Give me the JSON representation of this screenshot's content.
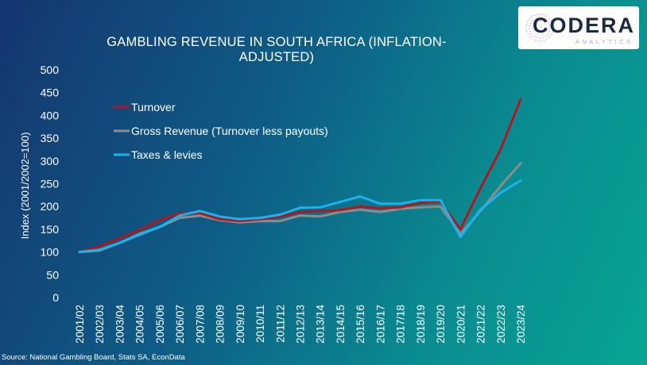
{
  "logo": {
    "name": "CODERA",
    "sub": "ANALYTICS"
  },
  "source": "Source:  National Gambling Board, Stats SA, EconData",
  "colors": {
    "turnover": "#b0171f",
    "gross": "#8c8c8c",
    "taxes": "#1cb2ee"
  },
  "chart_data": {
    "type": "line",
    "title": "GAMBLING REVENUE IN SOUTH AFRICA (INFLATION-ADJUSTED)",
    "ylabel": "Index (2001/2002=100)",
    "xlabel": "",
    "ylim": [
      0,
      500
    ],
    "yticks": [
      0,
      50,
      100,
      150,
      200,
      250,
      300,
      350,
      400,
      450,
      500
    ],
    "grid": false,
    "legend_position": "top-left",
    "categories": [
      "2001/02",
      "2002/03",
      "2003/04",
      "2004/05",
      "2005/06",
      "2006/07",
      "2007/08",
      "2008/09",
      "2009/10",
      "2010/11",
      "2011/12",
      "2012/13",
      "2013/14",
      "2014/15",
      "2015/16",
      "2016/17",
      "2017/18",
      "2018/19",
      "2019/20",
      "2020/21",
      "2021/22",
      "2022/23",
      "2023/24"
    ],
    "series": [
      {
        "name": "Turnover",
        "color": "#b0171f",
        "values": [
          100,
          112,
          130,
          148,
          170,
          185,
          185,
          172,
          168,
          172,
          178,
          188,
          190,
          192,
          200,
          196,
          198,
          208,
          210,
          150,
          240,
          325,
          435
        ]
      },
      {
        "name": "Gross Revenue (Turnover less payouts)",
        "color": "#8c8c8c",
        "values": [
          100,
          103,
          120,
          140,
          155,
          175,
          180,
          170,
          165,
          168,
          168,
          180,
          178,
          188,
          193,
          188,
          195,
          198,
          200,
          140,
          190,
          245,
          295
        ]
      },
      {
        "name": "Taxes & levies",
        "color": "#1cb2ee",
        "values": [
          100,
          105,
          120,
          138,
          155,
          180,
          190,
          178,
          172,
          175,
          182,
          197,
          198,
          210,
          222,
          206,
          206,
          214,
          214,
          133,
          193,
          230,
          257
        ]
      }
    ]
  }
}
